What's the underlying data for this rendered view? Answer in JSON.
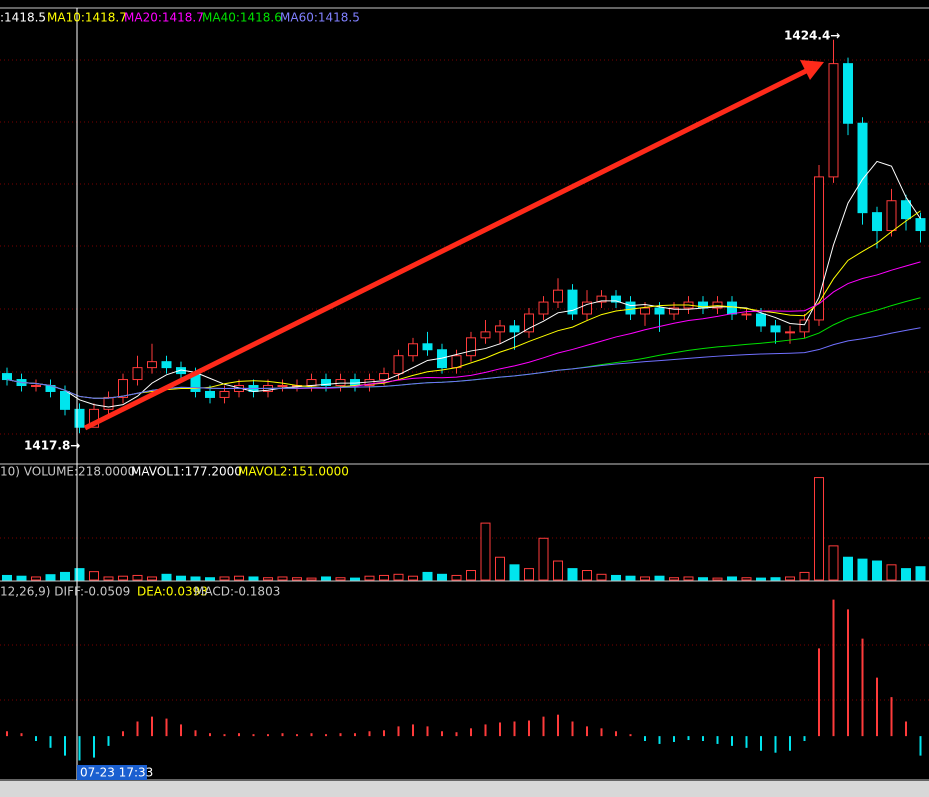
{
  "header": {
    "ma": [
      ":1418.5",
      "MA10:1418.7",
      "MA20:1418.7",
      "MA40:1418.6",
      "MA60:1418.5"
    ],
    "volume": [
      "10) VOLUME:218.0000",
      "MAVOL1:177.2000",
      "MAVOL2:151.0000"
    ],
    "macd": [
      "12,26,9) DIFF:-0.0509",
      "DEA:0.0393",
      "MACD:-0.1803"
    ]
  },
  "cursor": {
    "time": "07-23 17:33"
  },
  "chart_data": [
    {
      "type": "candlestick",
      "ylim": [
        1417.3,
        1424.9
      ],
      "up_color": "#ff3b3b",
      "down_color": "#00e5ee",
      "annotations": [
        "1417.8→",
        "1424.4→"
      ],
      "ma_windows": [
        5,
        10,
        20,
        40,
        60
      ],
      "ma_colors": [
        "#ffffff",
        "#ffff00",
        "#ff00ff",
        "#00e000",
        "#7070ff"
      ],
      "open": [
        1418.8,
        1418.7,
        1418.6,
        1418.6,
        1418.5,
        1418.2,
        1417.9,
        1418.2,
        1418.4,
        1418.7,
        1418.9,
        1419.0,
        1418.9,
        1418.8,
        1418.5,
        1418.4,
        1418.5,
        1418.6,
        1418.5,
        1418.6,
        1418.6,
        1418.6,
        1418.7,
        1418.6,
        1418.7,
        1418.6,
        1418.7,
        1418.8,
        1419.1,
        1419.3,
        1419.2,
        1418.9,
        1419.1,
        1419.4,
        1419.5,
        1419.6,
        1419.5,
        1419.8,
        1420.0,
        1420.2,
        1419.8,
        1420.0,
        1420.1,
        1420.0,
        1419.8,
        1419.9,
        1419.8,
        1419.9,
        1420.0,
        1419.9,
        1420.0,
        1419.8,
        1419.8,
        1419.6,
        1419.5,
        1419.5,
        1419.7,
        1422.1,
        1424.0,
        1423.0,
        1421.5,
        1421.2,
        1421.7,
        1421.4
      ],
      "high": [
        1418.9,
        1418.8,
        1418.7,
        1418.7,
        1418.6,
        1418.3,
        1418.3,
        1418.5,
        1418.8,
        1419.1,
        1419.3,
        1419.1,
        1419.0,
        1418.9,
        1418.6,
        1418.6,
        1418.7,
        1418.7,
        1418.7,
        1418.7,
        1418.7,
        1418.8,
        1418.8,
        1418.8,
        1418.8,
        1418.8,
        1418.9,
        1419.2,
        1419.4,
        1419.5,
        1419.3,
        1419.2,
        1419.5,
        1419.7,
        1419.7,
        1419.7,
        1419.9,
        1420.1,
        1420.4,
        1420.3,
        1420.2,
        1420.2,
        1420.2,
        1420.1,
        1420.0,
        1420.0,
        1420.0,
        1420.1,
        1420.1,
        1420.1,
        1420.1,
        1419.9,
        1419.9,
        1419.7,
        1419.6,
        1419.8,
        1422.3,
        1424.4,
        1424.1,
        1423.1,
        1421.6,
        1421.9,
        1421.8,
        1421.5
      ],
      "low": [
        1418.6,
        1418.5,
        1418.5,
        1418.4,
        1418.1,
        1417.8,
        1417.9,
        1418.1,
        1418.3,
        1418.6,
        1418.8,
        1418.8,
        1418.7,
        1418.4,
        1418.3,
        1418.3,
        1418.4,
        1418.4,
        1418.4,
        1418.5,
        1418.5,
        1418.5,
        1418.5,
        1418.5,
        1418.5,
        1418.5,
        1418.6,
        1418.7,
        1419.0,
        1419.1,
        1418.8,
        1418.8,
        1419.0,
        1419.3,
        1419.3,
        1419.2,
        1419.4,
        1419.7,
        1419.9,
        1419.7,
        1419.7,
        1419.9,
        1419.9,
        1419.7,
        1419.6,
        1419.5,
        1419.7,
        1419.8,
        1419.8,
        1419.8,
        1419.7,
        1419.7,
        1419.5,
        1419.3,
        1419.3,
        1419.4,
        1419.6,
        1422.0,
        1422.8,
        1421.3,
        1420.9,
        1421.1,
        1421.2,
        1421.0
      ],
      "close": [
        1418.7,
        1418.6,
        1418.6,
        1418.5,
        1418.2,
        1417.9,
        1418.2,
        1418.4,
        1418.7,
        1418.9,
        1419.0,
        1418.9,
        1418.8,
        1418.5,
        1418.4,
        1418.5,
        1418.6,
        1418.5,
        1418.6,
        1418.6,
        1418.6,
        1418.7,
        1418.6,
        1418.7,
        1418.6,
        1418.7,
        1418.8,
        1419.1,
        1419.3,
        1419.2,
        1418.9,
        1419.1,
        1419.4,
        1419.5,
        1419.6,
        1419.5,
        1419.8,
        1420.0,
        1420.2,
        1419.8,
        1420.0,
        1420.1,
        1420.0,
        1419.8,
        1419.9,
        1419.8,
        1419.9,
        1420.0,
        1419.9,
        1420.0,
        1419.8,
        1419.8,
        1419.6,
        1419.5,
        1419.5,
        1419.7,
        1422.1,
        1424.0,
        1423.0,
        1421.5,
        1421.2,
        1421.7,
        1421.4,
        1421.2
      ]
    },
    {
      "type": "bar",
      "ylim": [
        0,
        290
      ],
      "values": [
        12,
        10,
        8,
        14,
        20,
        30,
        22,
        8,
        10,
        12,
        8,
        15,
        10,
        8,
        6,
        8,
        10,
        8,
        6,
        8,
        6,
        5,
        8,
        6,
        5,
        10,
        12,
        15,
        10,
        20,
        15,
        12,
        25,
        150,
        60,
        40,
        30,
        110,
        50,
        30,
        25,
        15,
        12,
        10,
        8,
        10,
        6,
        8,
        6,
        5,
        8,
        6,
        5,
        6,
        8,
        20,
        270,
        90,
        60,
        55,
        50,
        40,
        30,
        35
      ]
    },
    {
      "type": "histogram",
      "ylim": [
        -0.45,
        1.55
      ],
      "up_color": "#ff3b3b",
      "down_color": "#00e5ee",
      "values": [
        0.05,
        0.03,
        -0.05,
        -0.12,
        -0.2,
        -0.25,
        -0.22,
        -0.1,
        0.05,
        0.15,
        0.2,
        0.18,
        0.12,
        0.06,
        0.03,
        0.02,
        0.03,
        0.02,
        0.02,
        0.03,
        0.02,
        0.03,
        0.02,
        0.03,
        0.03,
        0.05,
        0.06,
        0.1,
        0.12,
        0.1,
        0.05,
        0.04,
        0.08,
        0.12,
        0.14,
        0.15,
        0.16,
        0.2,
        0.22,
        0.15,
        0.1,
        0.08,
        0.05,
        0.02,
        -0.05,
        -0.08,
        -0.06,
        -0.04,
        -0.05,
        -0.08,
        -0.1,
        -0.12,
        -0.15,
        -0.17,
        -0.15,
        -0.05,
        0.9,
        1.4,
        1.3,
        1.0,
        0.6,
        0.4,
        0.15,
        -0.2
      ]
    }
  ]
}
